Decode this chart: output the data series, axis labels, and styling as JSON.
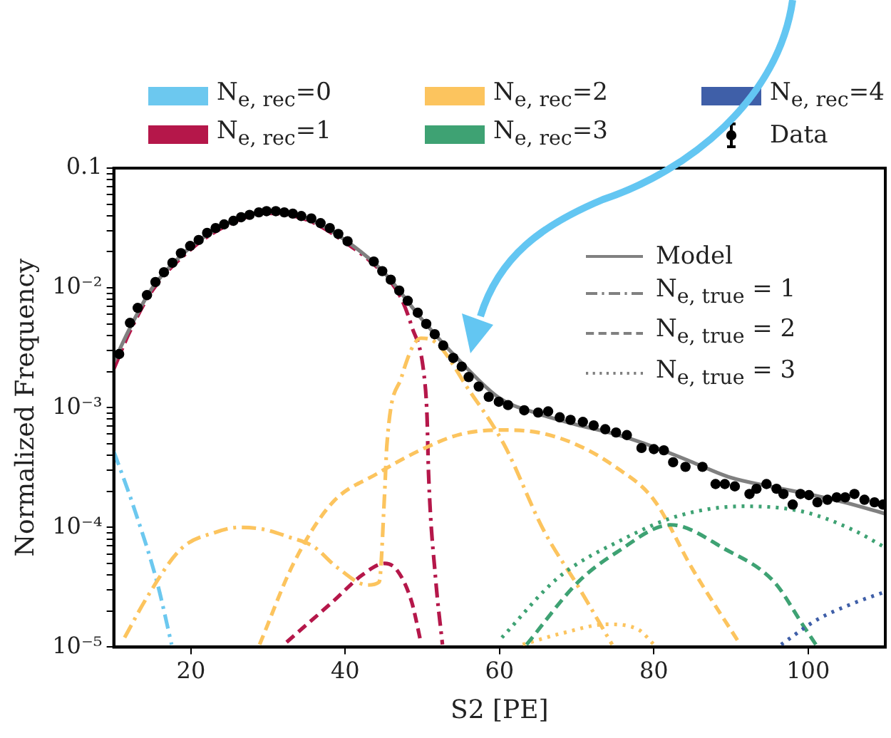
{
  "chart_data": {
    "type": "line",
    "xlabel": "S2 [PE]",
    "ylabel": "Normalized Frequency",
    "log": "y",
    "grid": false,
    "legend": "top",
    "xlim": [
      10,
      110
    ],
    "xticks": [
      20,
      40,
      60,
      80,
      100
    ],
    "ylim": [
      1e-05,
      0.1
    ],
    "yticks": [
      {
        "value": 1e-05,
        "label": "10⁻⁵"
      },
      {
        "value": 2e-05,
        "label": null
      },
      {
        "value": 3e-05,
        "label": null
      },
      {
        "value": 4e-05,
        "label": null
      },
      {
        "value": 5e-05,
        "label": null
      },
      {
        "value": 6e-05,
        "label": null
      },
      {
        "value": 7e-05,
        "label": null
      },
      {
        "value": 8e-05,
        "label": null
      },
      {
        "value": 9e-05,
        "label": null
      },
      {
        "value": 0.0001,
        "label": "10⁻⁴"
      },
      {
        "value": 0.0002,
        "label": null
      },
      {
        "value": 0.0003,
        "label": null
      },
      {
        "value": 0.0004,
        "label": null
      },
      {
        "value": 0.0005,
        "label": null
      },
      {
        "value": 0.0006,
        "label": null
      },
      {
        "value": 0.0007,
        "label": null
      },
      {
        "value": 0.0008,
        "label": null
      },
      {
        "value": 0.0009,
        "label": null
      },
      {
        "value": 0.001,
        "label": "10⁻³"
      },
      {
        "value": 0.002,
        "label": null
      },
      {
        "value": 0.003,
        "label": null
      },
      {
        "value": 0.004,
        "label": null
      },
      {
        "value": 0.005,
        "label": null
      },
      {
        "value": 0.006,
        "label": null
      },
      {
        "value": 0.007,
        "label": null
      },
      {
        "value": 0.008,
        "label": null
      },
      {
        "value": 0.009,
        "label": null
      },
      {
        "value": 0.01,
        "label": "10⁻²"
      },
      {
        "value": 0.02,
        "label": null
      },
      {
        "value": 0.03,
        "label": null
      },
      {
        "value": 0.04,
        "label": null
      },
      {
        "value": 0.05,
        "label": null
      },
      {
        "value": 0.06,
        "label": null
      },
      {
        "value": 0.07,
        "label": null
      },
      {
        "value": 0.08,
        "label": null
      },
      {
        "value": 0.09,
        "label": null
      },
      0.1
    ],
    "annotations": [
      "N$_{e, true}$ = 1",
      "N$_{e, true}$ = 2",
      "N$_{e, true}$ = 3"
    ],
    "series": [
      {
        "name": "N$_{e, rec}$=0",
        "color": "#6cc8ef",
        "line_style": "dashdot",
        "marker": "none",
        "x": [
          10,
          12.4,
          15.6,
          17.5
        ],
        "values": [
          0.00043,
          0.00016,
          3.5e-05,
          1.05e-05
        ]
      },
      {
        "name": "N$_{e, rec}$=1",
        "color": "#b5174a",
        "line_style": "dashdot",
        "marker": "none",
        "x": [
          10,
          12,
          15,
          20,
          25,
          30,
          35,
          40,
          45,
          47.2,
          48.6,
          50.2,
          50.6,
          50.8,
          51.7,
          52.6
        ],
        "values": [
          0.0021,
          0.0042,
          0.0095,
          0.021,
          0.034,
          0.042,
          0.037,
          0.024,
          0.013,
          0.0083,
          0.0048,
          0.0019,
          0.00085,
          0.00028,
          3.8e-05,
          1.05e-05
        ]
      },
      {
        "color": "#b5174a",
        "line_style": "dashed",
        "marker": "none",
        "x": [
          32.4,
          38.4,
          42.2,
          45.1,
          46.7,
          48.6,
          49.8
        ],
        "values": [
          1.1e-05,
          2.4e-05,
          4e-05,
          5e-05,
          4.4e-05,
          2.4e-05,
          1.1e-05
        ]
      },
      {
        "name": "N$_{e, rec}$=2",
        "color": "#fcc45e",
        "line_style": "dashdot",
        "marker": "none",
        "x": [
          11.4,
          14.3,
          18.7,
          23.2,
          26.3,
          29.5,
          32.7,
          35.9,
          39,
          42.9,
          44.4,
          45.1,
          45.4,
          47.3,
          49.8,
          51.1,
          56.2,
          60.6,
          65.7,
          70.2,
          74.6
        ],
        "values": [
          1.2e-05,
          2.6e-05,
          6.6e-05,
          9.1e-05,
          0.0001,
          9.6e-05,
          8.3e-05,
          6.9e-05,
          4.6e-05,
          3.3e-05,
          3.5e-05,
          0.00019,
          0.00049,
          0.0018,
          0.0038,
          0.0037,
          0.00135,
          0.00049,
          9.5e-05,
          3.2e-05,
          1.05e-05
        ]
      },
      {
        "color": "#fcc45e",
        "line_style": "dashed",
        "marker": "none",
        "x": [
          28.9,
          33.3,
          38.3,
          44.1,
          50,
          55,
          60,
          65,
          70,
          75,
          80,
          85,
          91
        ],
        "values": [
          1.05e-05,
          5e-05,
          0.00016,
          0.00028,
          0.00045,
          0.0006,
          0.00065,
          0.00062,
          0.00049,
          0.00032,
          0.00017,
          4.5e-05,
          1.1e-05
        ]
      },
      {
        "color": "#fcc45e",
        "line_style": "dotted",
        "marker": "none",
        "x": [
          63,
          68,
          74,
          78,
          80
        ],
        "values": [
          1.05e-05,
          1.3e-05,
          1.55e-05,
          1.4e-05,
          1.05e-05
        ]
      },
      {
        "name": "N$_{e, rec}$=3",
        "color": "#3ea273",
        "line_style": "dashed",
        "marker": "none",
        "x": [
          63.5,
          70.2,
          75.2,
          82.2,
          89.2,
          95.6,
          99.4,
          101
        ],
        "values": [
          1.05e-05,
          3.5e-05,
          6.2e-05,
          0.000105,
          6.6e-05,
          3.5e-05,
          1.5e-05,
          1.05e-05
        ]
      },
      {
        "color": "#3ea273",
        "line_style": "dotted",
        "marker": "none",
        "x": [
          60.3,
          67.6,
          75.9,
          83.4,
          91.7,
          99.4,
          105.7,
          109.8
        ],
        "values": [
          1.2e-05,
          3.8e-05,
          7.9e-05,
          0.000126,
          0.00015,
          0.000135,
          9.6e-05,
          6.9e-05
        ]
      },
      {
        "name": "N$_{e, rec}$=4",
        "color": "#3f5fa8",
        "line_style": "dotted",
        "marker": "none",
        "x": [
          96.5,
          101.2,
          105.7,
          110
        ],
        "values": [
          1.05e-05,
          1.7e-05,
          2.3e-05,
          2.9e-05
        ]
      },
      {
        "name": "Model",
        "color": "#808080",
        "line_style": "solid",
        "marker": "none",
        "x": [
          10,
          12,
          15,
          20,
          25,
          30,
          35,
          40,
          45,
          50,
          55,
          60,
          65,
          70,
          75,
          80,
          85,
          90,
          95,
          100,
          105,
          110
        ],
        "values": [
          0.0024,
          0.0045,
          0.01,
          0.022,
          0.035,
          0.043,
          0.038,
          0.025,
          0.0135,
          0.0054,
          0.0024,
          0.0012,
          0.00089,
          0.00072,
          0.0006,
          0.00047,
          0.00035,
          0.00026,
          0.00022,
          0.00019,
          0.00016,
          0.00013
        ]
      },
      {
        "name": "Data",
        "color": "#000000",
        "type": "scatter",
        "marker": "circle",
        "x": [
          10.7,
          12.1,
          13.1,
          14.3,
          15.4,
          16.5,
          17.6,
          18.7,
          19.9,
          21,
          22.1,
          23.2,
          24.3,
          25.5,
          26.5,
          27.6,
          28.8,
          29.8,
          31,
          32.1,
          33.2,
          34.3,
          35.6,
          36.8,
          38,
          39.1,
          40.3,
          43.7,
          44.8,
          45.9,
          47,
          48.1,
          49.4,
          50.5,
          51.6,
          52.7,
          54,
          55.1,
          56,
          57.3,
          58.6,
          59.9,
          61.1,
          63.2,
          65,
          66.3,
          67.8,
          69.2,
          70.8,
          72.2,
          73.7,
          75.1,
          76.5,
          78.4,
          80,
          81.3,
          82.5,
          84.1,
          86.3,
          88,
          89.2,
          90.5,
          92.4,
          93.3,
          94.6,
          95.9,
          96.8,
          98,
          99,
          100.1,
          101.2,
          102.5,
          103.7,
          104.8,
          106,
          107.3,
          108.6,
          109.7
        ],
        "values": [
          0.0028,
          0.0051,
          0.0068,
          0.0087,
          0.0112,
          0.0135,
          0.0162,
          0.0195,
          0.0224,
          0.0251,
          0.0288,
          0.0316,
          0.0339,
          0.0363,
          0.0389,
          0.0407,
          0.0427,
          0.0437,
          0.0437,
          0.0427,
          0.0417,
          0.0398,
          0.038,
          0.0347,
          0.0316,
          0.0282,
          0.0245,
          0.0166,
          0.0138,
          0.0117,
          0.0095,
          0.0078,
          0.0062,
          0.005,
          0.0041,
          0.0033,
          0.0026,
          0.0022,
          0.0018,
          0.0015,
          0.00123,
          0.00112,
          0.00105,
          0.00095,
          0.00091,
          0.00093,
          0.00083,
          0.00079,
          0.00076,
          0.00071,
          0.00066,
          0.00062,
          0.00059,
          0.00046,
          0.00045,
          0.00044,
          0.00035,
          0.00032,
          0.00032,
          0.00023,
          0.00023,
          0.00022,
          0.00019,
          0.00021,
          0.00023,
          0.00021,
          0.00019,
          0.000155,
          0.00019,
          0.000186,
          0.000162,
          0.00017,
          0.000178,
          0.000178,
          0.00019,
          0.00017,
          0.000162,
          0.000155
        ]
      }
    ]
  }
}
